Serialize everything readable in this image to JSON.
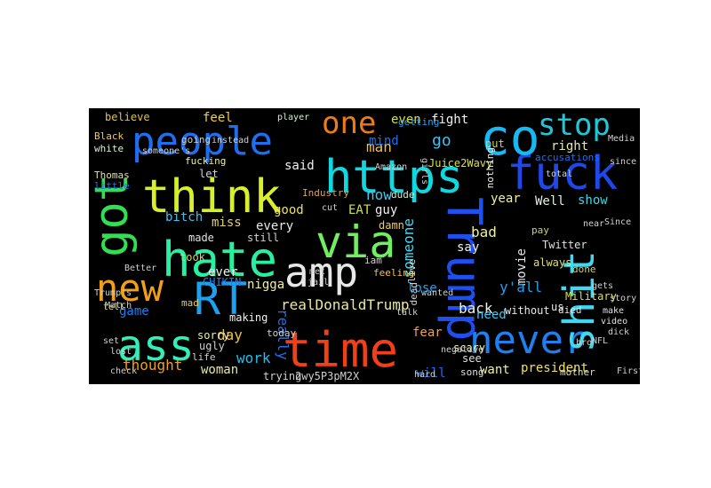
{
  "words": [
    {
      "text": "people",
      "color": "#1e6ff0"
    },
    {
      "text": "https",
      "color": "#10d8e0"
    },
    {
      "text": "think",
      "color": "#d8f02a"
    },
    {
      "text": "hate",
      "color": "#28f0a0"
    },
    {
      "text": "via",
      "color": "#70f060"
    },
    {
      "text": "amp",
      "color": "#e8e8e8"
    },
    {
      "text": "fuck",
      "color": "#1e48e8"
    },
    {
      "text": "co",
      "color": "#1ab8f0"
    },
    {
      "text": "stop",
      "color": "#1ec8d8"
    },
    {
      "text": "one",
      "color": "#f07a18"
    },
    {
      "text": "got",
      "color": "#30e050"
    },
    {
      "text": "new",
      "color": "#f0a018"
    },
    {
      "text": "RT",
      "color": "#1ea0f0"
    },
    {
      "text": "ass",
      "color": "#30f0b8"
    },
    {
      "text": "time",
      "color": "#f0401a"
    },
    {
      "text": "never",
      "color": "#1e80f0"
    },
    {
      "text": "Trump",
      "color": "#1e50f0"
    },
    {
      "text": "shit",
      "color": "#40d8f0"
    },
    {
      "text": "believe",
      "color": "#e8c040"
    },
    {
      "text": "feel",
      "color": "#f0d050"
    },
    {
      "text": "player",
      "color": "#d0f0d0"
    },
    {
      "text": "even",
      "color": "#d8e040"
    },
    {
      "text": "fight",
      "color": "#f0f0f0"
    },
    {
      "text": "man",
      "color": "#f0c050"
    },
    {
      "text": "go",
      "color": "#40c0f0"
    },
    {
      "text": "mind",
      "color": "#1e6ff0"
    },
    {
      "text": "put",
      "color": "#d0d070"
    },
    {
      "text": "right",
      "color": "#e8e8a0"
    },
    {
      "text": "Juice2Wavy",
      "color": "#d8e040"
    },
    {
      "text": "Black",
      "color": "#f0c860"
    },
    {
      "text": "white",
      "color": "#d8f0d0"
    },
    {
      "text": "fucking",
      "color": "#f0f0a0"
    },
    {
      "text": "let",
      "color": "#d0d0d0"
    },
    {
      "text": "said",
      "color": "#f0f0f0"
    },
    {
      "text": "now",
      "color": "#40c8f0"
    },
    {
      "text": "dude",
      "color": "#d0f0d0"
    },
    {
      "text": "year",
      "color": "#f0f0a0"
    },
    {
      "text": "Well",
      "color": "#e0f0e0"
    },
    {
      "text": "show",
      "color": "#40d8e0"
    },
    {
      "text": "Industry",
      "color": "#e0a050"
    },
    {
      "text": "good",
      "color": "#f0e060"
    },
    {
      "text": "EAT",
      "color": "#d0e040"
    },
    {
      "text": "guy",
      "color": "#f0f0f0"
    },
    {
      "text": "damn",
      "color": "#f0c860"
    },
    {
      "text": "miss",
      "color": "#e0d070"
    },
    {
      "text": "bitch",
      "color": "#40c0f0"
    },
    {
      "text": "every",
      "color": "#e8e8e8"
    },
    {
      "text": "made",
      "color": "#e0e0e0"
    },
    {
      "text": "still",
      "color": "#d0d0d0"
    },
    {
      "text": "someone",
      "color": "#40d8f0"
    },
    {
      "text": "live",
      "color": "#e0e0e0"
    },
    {
      "text": "bad",
      "color": "#f0f0a0"
    },
    {
      "text": "pay",
      "color": "#d0d070"
    },
    {
      "text": "Twitter",
      "color": "#e0e0e0"
    },
    {
      "text": "movie",
      "color": "#e8e8e8"
    },
    {
      "text": "say",
      "color": "#f0f0f0"
    },
    {
      "text": "always",
      "color": "#e0e060"
    },
    {
      "text": "y'all",
      "color": "#1ea0f0"
    },
    {
      "text": "died",
      "color": "#e0e0e0"
    },
    {
      "text": "took",
      "color": "#d0d070"
    },
    {
      "text": "ever",
      "color": "#f0f0f0"
    },
    {
      "text": "nigga",
      "color": "#f0f0a0"
    },
    {
      "text": "lose",
      "color": "#1ea0f0"
    },
    {
      "text": "dead",
      "color": "#d0d0d0"
    },
    {
      "text": "realDonaldTrump",
      "color": "#e8e8a0"
    },
    {
      "text": "back",
      "color": "#f0f0f0"
    },
    {
      "text": "need",
      "color": "#40c8f0"
    },
    {
      "text": "game",
      "color": "#1e80f0"
    },
    {
      "text": "really",
      "color": "#1e6ff0"
    },
    {
      "text": "today",
      "color": "#d0d0d0"
    },
    {
      "text": "making",
      "color": "#f0f0f0"
    },
    {
      "text": "fear",
      "color": "#f0a050"
    },
    {
      "text": "day",
      "color": "#f0c040"
    },
    {
      "text": "sorry",
      "color": "#f0f0a0"
    },
    {
      "text": "ugly",
      "color": "#d0d0d0"
    },
    {
      "text": "scary",
      "color": "#f0f0a0"
    },
    {
      "text": "see",
      "color": "#e0e0e0"
    },
    {
      "text": "us",
      "color": "#f0f0f0"
    },
    {
      "text": "work",
      "color": "#1ec0f0"
    },
    {
      "text": "thought",
      "color": "#f0a018"
    },
    {
      "text": "woman",
      "color": "#e8e8a0"
    },
    {
      "text": "want",
      "color": "#f0f0a0"
    },
    {
      "text": "president",
      "color": "#f0e060"
    },
    {
      "text": "trying",
      "color": "#d0d0d0"
    },
    {
      "text": "2wy5P3pM2X",
      "color": "#d0d0d0"
    },
    {
      "text": "will",
      "color": "#1e6ff0"
    },
    {
      "text": "mother",
      "color": "#e0e0a0"
    },
    {
      "text": "CHIKIN",
      "color": "#1e80f0"
    },
    {
      "text": "without",
      "color": "#e8e8e8"
    },
    {
      "text": "Military",
      "color": "#e0e040"
    },
    {
      "text": "life",
      "color": "#d0d0d0"
    },
    {
      "text": "mad",
      "color": "#e0d070"
    },
    {
      "text": "iam",
      "color": "#d0d0d0"
    },
    {
      "text": "feeling",
      "color": "#f0c050"
    },
    {
      "text": "Thomas",
      "color": "#e0e0a0"
    },
    {
      "text": "getting",
      "color": "#1ea0f0"
    },
    {
      "text": "nothing",
      "color": "#f0f0f0"
    },
    {
      "text": "song",
      "color": "#e0e0e0"
    },
    {
      "text": "done",
      "color": "#d0d070"
    },
    {
      "text": "accusations",
      "color": "#1e6ff0"
    },
    {
      "text": "going",
      "color": "#d0d0d0"
    },
    {
      "text": "little",
      "color": "#1e6ff0"
    },
    {
      "text": "tell",
      "color": "#e0e0a0"
    },
    {
      "text": "Amazon",
      "color": "#d0d0d0"
    },
    {
      "text": "girls",
      "color": "#d0d0d0"
    },
    {
      "text": "jail",
      "color": "#d0d0d0"
    },
    {
      "text": "lost",
      "color": "#d0d0d0"
    },
    {
      "text": "negative",
      "color": "#d0d0d0"
    },
    {
      "text": "hard",
      "color": "#d0d0d0"
    },
    {
      "text": "check",
      "color": "#d0d0d0"
    },
    {
      "text": "Trump's",
      "color": "#d0d0d0"
    },
    {
      "text": "wanted",
      "color": "#d0d0d0"
    },
    {
      "text": "Match",
      "color": "#d0d0d0"
    },
    {
      "text": "First",
      "color": "#d0d0d0"
    },
    {
      "text": "video",
      "color": "#e0e0e0"
    },
    {
      "text": "make",
      "color": "#e0e0e0"
    },
    {
      "text": "story",
      "color": "#d0d0d0"
    },
    {
      "text": "Since",
      "color": "#d0d0d0"
    },
    {
      "text": "Media",
      "color": "#d0d0d0"
    },
    {
      "text": "since",
      "color": "#d0d0d0"
    },
    {
      "text": "total",
      "color": "#d0d0d0"
    },
    {
      "text": "instead",
      "color": "#d0d0d0"
    },
    {
      "text": "near",
      "color": "#d0d0d0"
    },
    {
      "text": "bro",
      "color": "#d0d0d0"
    },
    {
      "text": "gets",
      "color": "#d0d0d0"
    },
    {
      "text": "dick",
      "color": "#d0d0d0"
    },
    {
      "text": "NFL",
      "color": "#d0d0d0"
    },
    {
      "text": "cut",
      "color": "#d0d0d0"
    },
    {
      "text": "Better",
      "color": "#d0d0d0"
    },
    {
      "text": "set",
      "color": "#d0d0d0"
    },
    {
      "text": "met",
      "color": "#d0d0d0"
    },
    {
      "text": "someone's",
      "color": "#d0d0d0"
    },
    {
      "text": "talk",
      "color": "#d0d0d0"
    }
  ]
}
